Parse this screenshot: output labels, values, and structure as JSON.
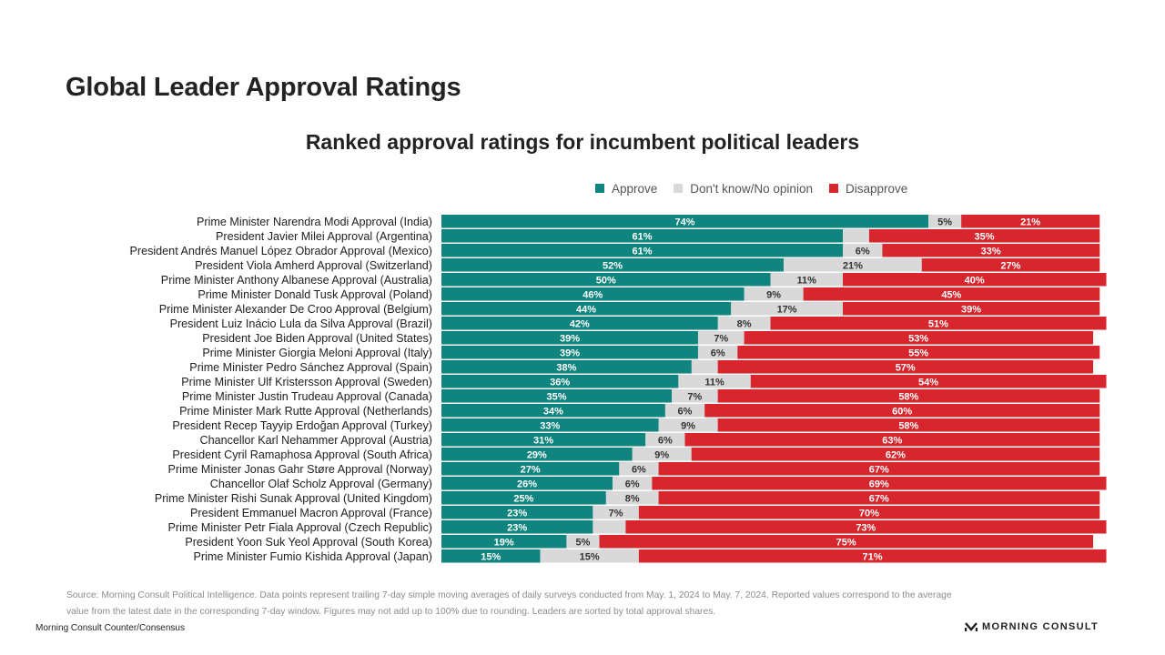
{
  "header": {
    "title": "Global Leader Approval Ratings"
  },
  "chart_data": {
    "type": "bar",
    "orientation": "horizontal-stacked-100",
    "title": "Ranked approval ratings for incumbent political leaders",
    "legend": {
      "placement": "top-right",
      "entries": [
        "Approve",
        "Don't know/No opinion",
        "Disapprove"
      ]
    },
    "colors": {
      "approve": "#10857f",
      "dont_know": "#d9d9d9",
      "disapprove": "#d7262d"
    },
    "xlim": [
      0,
      100
    ],
    "categories": [
      "Prime Minister Narendra Modi Approval (India)",
      "President Javier Milei Approval (Argentina)",
      "President Andrés Manuel López Obrador Approval (Mexico)",
      "President Viola Amherd Approval (Switzerland)",
      "Prime Minister Anthony Albanese Approval (Australia)",
      "Prime Minister Donald Tusk Approval (Poland)",
      "Prime Minister Alexander De Croo Approval (Belgium)",
      "President Luiz Inácio Lula da Silva Approval (Brazil)",
      "President Joe Biden Approval (United States)",
      "Prime Minister Giorgia Meloni Approval (Italy)",
      "Prime Minister Pedro Sánchez Approval (Spain)",
      "Prime Minister Ulf Kristersson Approval (Sweden)",
      "Prime Minister Justin Trudeau Approval (Canada)",
      "Prime Minister Mark Rutte Approval (Netherlands)",
      "President Recep Tayyip Erdoğan Approval (Turkey)",
      "Chancellor Karl Nehammer Approval (Austria)",
      "President Cyril Ramaphosa Approval (South Africa)",
      "Prime Minister Jonas Gahr Støre Approval (Norway)",
      "Chancellor Olaf Scholz Approval (Germany)",
      "Prime Minister Rishi Sunak Approval (United Kingdom)",
      "President Emmanuel Macron Approval (France)",
      "Prime Minister Petr Fiala Approval (Czech Republic)",
      "President Yoon Suk Yeol Approval (South Korea)",
      "Prime Minister Fumio Kishida Approval (Japan)"
    ],
    "series": [
      {
        "name": "Approve",
        "key": "approve",
        "values": [
          74,
          61,
          61,
          52,
          50,
          46,
          44,
          42,
          39,
          39,
          38,
          36,
          35,
          34,
          33,
          31,
          29,
          27,
          26,
          25,
          23,
          23,
          19,
          15
        ],
        "labels": [
          true,
          true,
          true,
          true,
          true,
          true,
          true,
          true,
          true,
          true,
          true,
          true,
          true,
          true,
          true,
          true,
          true,
          true,
          true,
          true,
          true,
          true,
          true,
          true
        ]
      },
      {
        "name": "Don't know/No opinion",
        "key": "dont_know",
        "values": [
          5,
          4,
          6,
          21,
          11,
          9,
          17,
          8,
          7,
          6,
          4,
          11,
          7,
          6,
          9,
          6,
          9,
          6,
          6,
          8,
          7,
          5,
          5,
          15
        ],
        "labels": [
          true,
          false,
          true,
          true,
          true,
          true,
          true,
          true,
          true,
          true,
          false,
          true,
          true,
          true,
          true,
          true,
          true,
          true,
          true,
          true,
          true,
          false,
          true,
          true
        ]
      },
      {
        "name": "Disapprove",
        "key": "disapprove",
        "values": [
          21,
          35,
          33,
          27,
          40,
          45,
          39,
          51,
          53,
          55,
          57,
          54,
          58,
          60,
          58,
          63,
          62,
          67,
          69,
          67,
          70,
          73,
          75,
          71
        ],
        "labels": [
          true,
          true,
          true,
          true,
          true,
          true,
          true,
          true,
          true,
          true,
          true,
          true,
          true,
          true,
          true,
          true,
          true,
          true,
          true,
          true,
          true,
          true,
          true,
          true
        ]
      }
    ]
  },
  "source": {
    "line1": "Source: Morning Consult Political Intelligence. Data points represent trailing 7-day simple moving averages of daily surveys conducted from May. 1, 2024 to May. 7, 2024. Reported values correspond to the average",
    "line2": "value from the latest date in the corresponding 7-day window. Figures may not add up to 100% due to rounding. Leaders are sorted by total approval shares."
  },
  "footer": {
    "left": "Morning Consult Counter/Consensus",
    "brand": "MORNING CONSULT"
  }
}
